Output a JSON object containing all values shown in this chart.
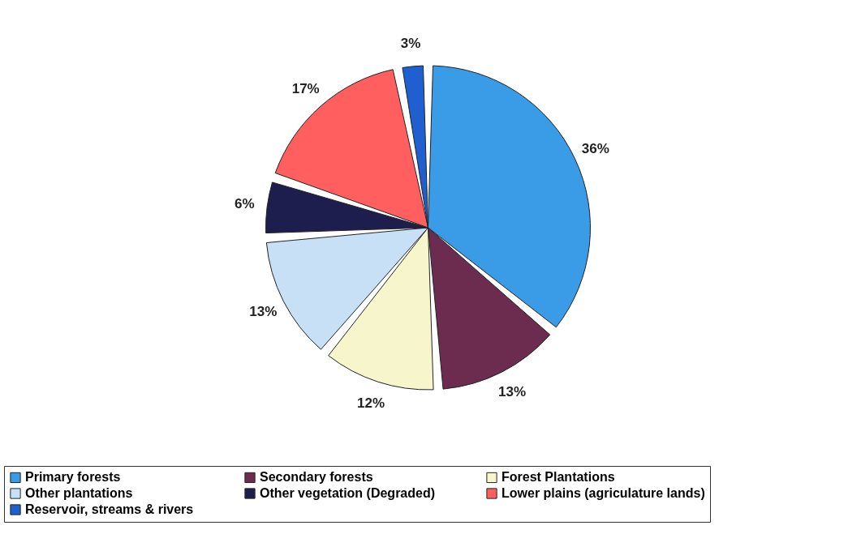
{
  "chart_data": {
    "type": "pie",
    "categories": [
      "Primary forests",
      "Secondary forests",
      "Forest Plantations",
      "Other plantations",
      "Other vegetation (Degraded)",
      "Lower plains (agriculature lands)",
      "Reservoir, streams & rivers"
    ],
    "values": [
      36,
      13,
      12,
      13,
      6,
      17,
      3
    ],
    "value_labels": [
      "36%",
      "13%",
      "12%",
      "13%",
      "6%",
      "17%",
      "3%"
    ],
    "colors": [
      "#3a9be6",
      "#6b2c50",
      "#f7f5cc",
      "#c8e0f6",
      "#1e1e4e",
      "#ff5f5f",
      "#1f5fcf"
    ],
    "legend": "bottom"
  }
}
